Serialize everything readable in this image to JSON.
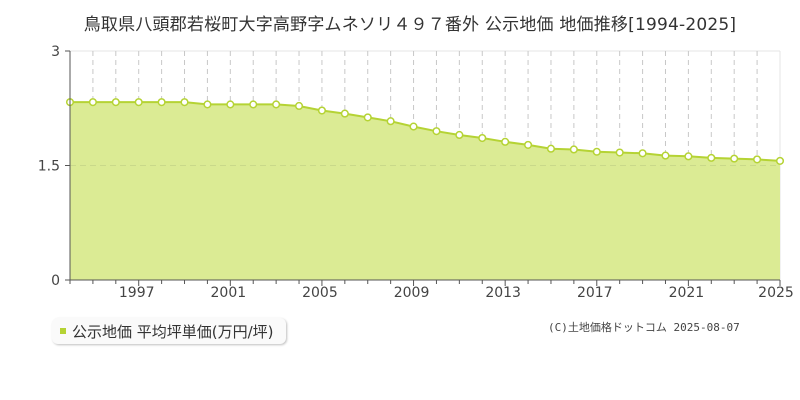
{
  "title": "鳥取県八頭郡若桜町大字高野字ムネソリ４９７番外 公示地価 地価推移[1994-2025]",
  "legend": {
    "label": "公示地価 平均坪単価(万円/坪)",
    "color": "#b5d334"
  },
  "credit": "(C)土地価格ドットコム 2025-08-07",
  "colors": {
    "fill": "#dbeb94",
    "line": "#b5d334",
    "grid": "#c8c8c8",
    "axis": "#555555"
  },
  "chart_data": {
    "type": "area",
    "title": "鳥取県八頭郡若桜町大字高野字ムネソリ４９７番外 公示地価 地価推移[1994-2025]",
    "xlabel": "",
    "ylabel": "",
    "ylim": [
      0,
      3
    ],
    "yticks": [
      "0",
      "1.5",
      "3"
    ],
    "xticks": [
      "1997",
      "2001",
      "2005",
      "2009",
      "2013",
      "2017",
      "2021",
      "2025"
    ],
    "grid": true,
    "legend_position": "bottom-left",
    "series": [
      {
        "name": "公示地価 平均坪単価(万円/坪)",
        "x": [
          1994,
          1995,
          1996,
          1997,
          1998,
          1999,
          2000,
          2001,
          2002,
          2003,
          2004,
          2005,
          2006,
          2007,
          2008,
          2009,
          2010,
          2011,
          2012,
          2013,
          2014,
          2015,
          2016,
          2017,
          2018,
          2019,
          2020,
          2021,
          2022,
          2023,
          2024,
          2025
        ],
        "values": [
          2.33,
          2.33,
          2.33,
          2.33,
          2.33,
          2.33,
          2.3,
          2.3,
          2.3,
          2.3,
          2.28,
          2.22,
          2.18,
          2.13,
          2.08,
          2.01,
          1.95,
          1.9,
          1.86,
          1.81,
          1.77,
          1.72,
          1.71,
          1.68,
          1.67,
          1.66,
          1.63,
          1.62,
          1.6,
          1.59,
          1.58,
          1.56
        ]
      }
    ]
  }
}
